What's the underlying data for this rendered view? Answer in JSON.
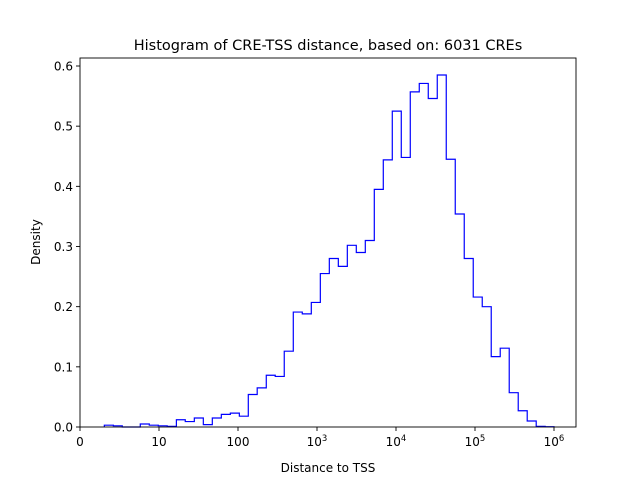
{
  "chart_data": {
    "type": "histogram-step",
    "title": "Histogram of CRE-TSS distance, based on: 6031 CREs",
    "xlabel": "Distance to TSS",
    "ylabel": "Density",
    "xscale": "symlog",
    "linthresh": 10,
    "xlim": [
      0,
      2000000
    ],
    "ylim": [
      0,
      0.615
    ],
    "grid": false,
    "line_color": "#0000ff",
    "x_ticks": [
      {
        "value": 0,
        "label": "0"
      },
      {
        "value": 10,
        "label": "10"
      },
      {
        "value": 100,
        "label": "100"
      },
      {
        "value": 1000,
        "label": "10",
        "exp": "3"
      },
      {
        "value": 10000,
        "label": "10",
        "exp": "4"
      },
      {
        "value": 100000,
        "label": "10",
        "exp": "5"
      },
      {
        "value": 1000000,
        "label": "10",
        "exp": "6"
      }
    ],
    "y_ticks": [
      {
        "value": 0,
        "label": "0.0"
      },
      {
        "value": 0.1,
        "label": "0.1"
      },
      {
        "value": 0.2,
        "label": "0.2"
      },
      {
        "value": 0.3,
        "label": "0.3"
      },
      {
        "value": 0.4,
        "label": "0.4"
      },
      {
        "value": 0.5,
        "label": "0.5"
      },
      {
        "value": 0.6,
        "label": "0.6"
      }
    ],
    "bin_edges": [
      3.08,
      4.22,
      5.35,
      6.49,
      7.63,
      8.77,
      9.91,
      12.7,
      16.6,
      21.5,
      28.0,
      36.4,
      47.3,
      61.5,
      80.0,
      104,
      135,
      175,
      228,
      296,
      385,
      501,
      651,
      847,
      1102,
      1432,
      1862,
      2420,
      3144,
      4087,
      5312,
      6904,
      8974,
      11663,
      15160,
      19704,
      25610,
      33287,
      43265,
      56234,
      73090,
      95000,
      123500,
      160500,
      208600,
      271200,
      352500,
      458100,
      595400,
      773900,
      1000000
    ],
    "density": [
      0.003,
      0.002,
      0,
      0,
      0.005,
      0.003,
      0.002,
      0.001,
      0.012,
      0.009,
      0.015,
      0.004,
      0.015,
      0.021,
      0.023,
      0.018,
      0.054,
      0.065,
      0.086,
      0.084,
      0.126,
      0.191,
      0.188,
      0.207,
      0.255,
      0.28,
      0.267,
      0.302,
      0.29,
      0.31,
      0.395,
      0.444,
      0.525,
      0.448,
      0.557,
      0.571,
      0.546,
      0.585,
      0.445,
      0.354,
      0.28,
      0.216,
      0.2,
      0.117,
      0.131,
      0.057,
      0.027,
      0.01,
      0.001,
      0.0005
    ]
  }
}
